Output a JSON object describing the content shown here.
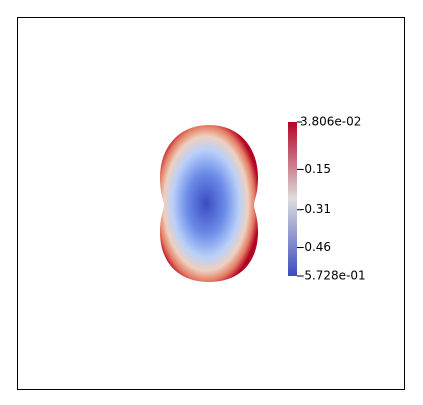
{
  "chart_data": {
    "type": "field",
    "colorbar": {
      "colors": [
        "#3b4cc0",
        "#dddddd",
        "#b40426"
      ],
      "lim": [
        -0.5728,
        0.03806
      ],
      "ticks": [
        {
          "value": 0.03806,
          "label": "3.806e-02"
        },
        -0.15,
        -0.31,
        -0.46,
        {
          "value": -0.5728,
          "label": "-5.728e-01"
        }
      ]
    }
  }
}
